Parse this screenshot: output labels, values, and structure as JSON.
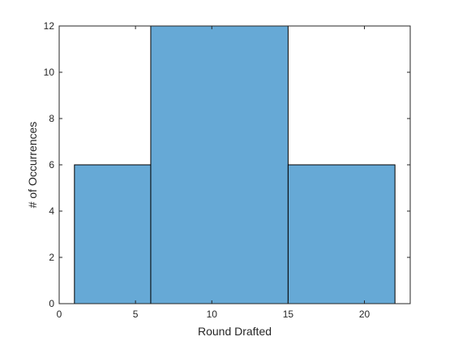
{
  "chart_data": {
    "type": "bar",
    "subtype": "histogram",
    "bins": [
      {
        "start": 1,
        "end": 6,
        "value": 6
      },
      {
        "start": 6,
        "end": 15,
        "value": 12
      },
      {
        "start": 15,
        "end": 22,
        "value": 6
      }
    ],
    "xlabel": "Round Drafted",
    "ylabel": "# of Occurrences",
    "xlim": [
      0,
      23
    ],
    "ylim": [
      0,
      12
    ],
    "xticks": [
      "0",
      "5",
      "10",
      "15",
      "20"
    ],
    "yticks": [
      "0",
      "2",
      "4",
      "6",
      "8",
      "10",
      "12"
    ],
    "grid": false,
    "bar_color": "#66A9D6",
    "edge_color": "#000000"
  }
}
